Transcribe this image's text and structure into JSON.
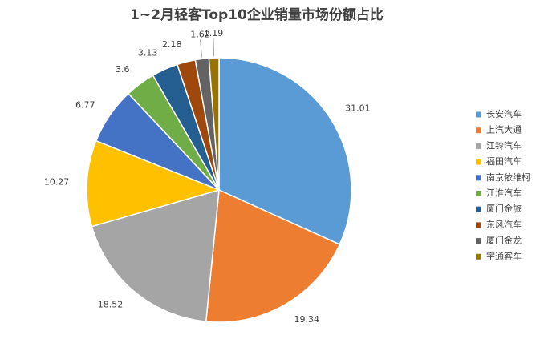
{
  "chart_data": {
    "type": "pie",
    "title": "1~2月轻客Top10企业销量市场份额占比",
    "categories": [
      "长安汽车",
      "上汽大通",
      "江铃汽车",
      "福田汽车",
      "南京依维柯",
      "江淮汽车",
      "厦门金旅",
      "东风汽车",
      "厦门金龙",
      "宇通客车"
    ],
    "values": [
      31.01,
      19.34,
      18.52,
      10.27,
      6.77,
      3.6,
      3.13,
      2.18,
      1.62,
      1.19
    ],
    "colors": [
      "#5b9bd5",
      "#ed7d31",
      "#a5a5a5",
      "#ffc000",
      "#4472c4",
      "#70ad47",
      "#255e91",
      "#9e480e",
      "#636363",
      "#997300"
    ],
    "legend": "right"
  }
}
